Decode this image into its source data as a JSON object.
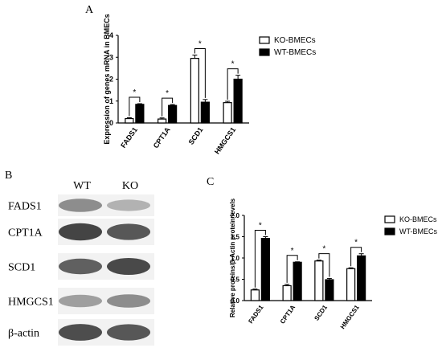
{
  "panel_labels": {
    "a": "A",
    "b": "B",
    "c": "C"
  },
  "colors": {
    "ko": "#ffffff",
    "wt": "#000000",
    "axis": "#000000",
    "band_bg": "#f2f2f2",
    "band": "#1a1a1a"
  },
  "chart_data": [
    {
      "type": "bar",
      "panel": "A",
      "categories": [
        "FADS1",
        "CPT1A",
        "SCD1",
        "HMGCS1"
      ],
      "series": [
        {
          "name": "KO-BMECs",
          "values": [
            0.2,
            0.18,
            2.95,
            0.93
          ],
          "errors": [
            0.04,
            0.05,
            0.15,
            0.06
          ]
        },
        {
          "name": "WT-BMECs",
          "values": [
            0.85,
            0.8,
            0.95,
            2.0
          ],
          "errors": [
            0.03,
            0.04,
            0.12,
            0.18
          ]
        }
      ],
      "significance": [
        "*",
        "*",
        "*",
        "*"
      ],
      "xlabel": "",
      "ylabel": "Expression of genes mRNA in BMECs",
      "yticks": [
        0,
        1,
        2,
        3,
        4
      ],
      "ylim": [
        0,
        4
      ],
      "grid": false,
      "legend": "top-right"
    },
    {
      "type": "bar",
      "panel": "C",
      "categories": [
        "FADS1",
        "CPT1A",
        "SCD1",
        "HMGCS1"
      ],
      "series": [
        {
          "name": "KO-BMECs",
          "values": [
            0.25,
            0.35,
            0.93,
            0.75
          ],
          "errors": [
            0.02,
            0.03,
            0.02,
            0.02
          ]
        },
        {
          "name": "WT-BMECs",
          "values": [
            1.46,
            0.9,
            0.49,
            1.05
          ],
          "errors": [
            0.04,
            0.01,
            0.03,
            0.05
          ]
        }
      ],
      "significance": [
        "*",
        "*",
        "*",
        "*"
      ],
      "xlabel": "",
      "ylabel": "Relative proteins/β-Actin protein levels",
      "yticks": [
        "0.0",
        "0.5",
        "1.0",
        "1.5",
        "2.0"
      ],
      "ylim": [
        0,
        2
      ],
      "grid": false,
      "legend": "top-right"
    }
  ],
  "blot": {
    "columns": [
      "WT",
      "KO"
    ],
    "rows": [
      {
        "label": "FADS1",
        "wt": 0.55,
        "ko": 0.35
      },
      {
        "label": "CPT1A",
        "wt": 0.95,
        "ko": 0.85
      },
      {
        "label": "SCD1",
        "wt": 0.8,
        "ko": 0.92
      },
      {
        "label": "HMGCS1",
        "wt": 0.45,
        "ko": 0.55
      },
      {
        "label": "β-actin",
        "wt": 0.9,
        "ko": 0.85
      }
    ]
  }
}
